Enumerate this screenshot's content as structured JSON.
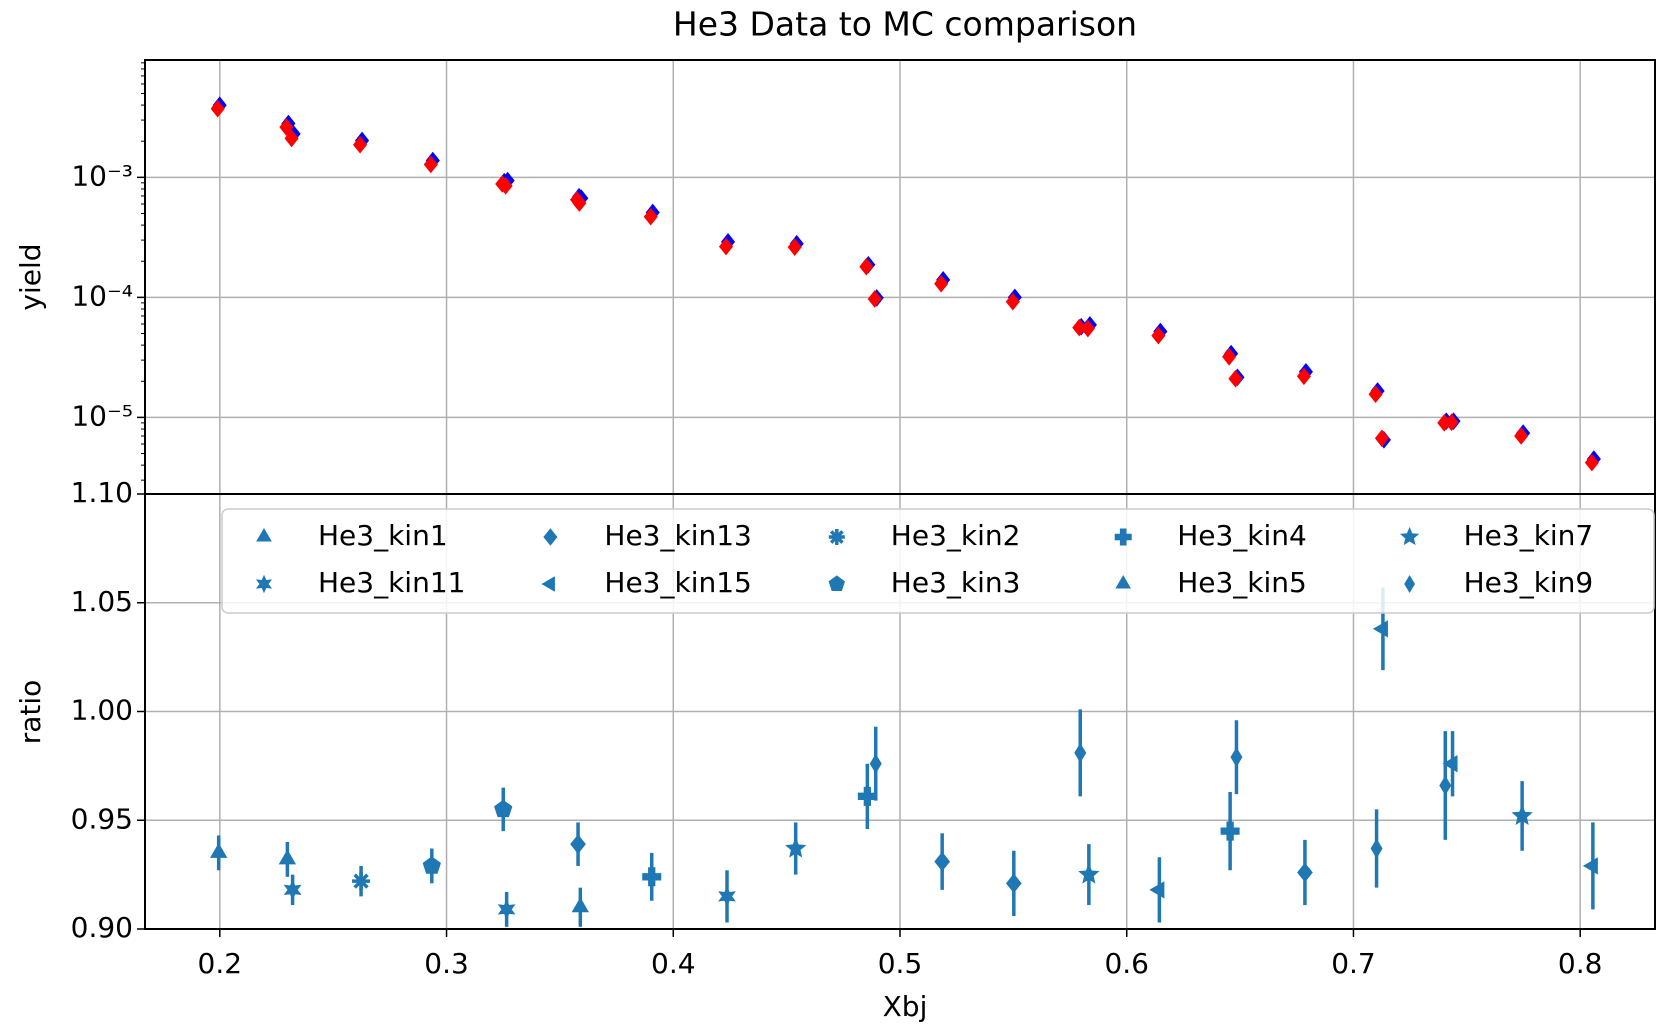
{
  "chart_data": [
    {
      "type": "scatter",
      "title": "He3 Data to MC comparison",
      "ylabel": "yield",
      "log_y": true,
      "grid": true,
      "xlim": [
        0.167,
        0.833
      ],
      "ylim": [
        2.3e-06,
        0.0095
      ],
      "yticks": [
        {
          "value": 0.001,
          "label": "10⁻³"
        },
        {
          "value": 0.0001,
          "label": "10⁻⁴"
        },
        {
          "value": 1e-05,
          "label": "10⁻⁵"
        }
      ],
      "x": [
        0.1995,
        0.2298,
        0.2321,
        0.2623,
        0.2935,
        0.325,
        0.3265,
        0.358,
        0.359,
        0.3905,
        0.4237,
        0.454,
        0.4856,
        0.4893,
        0.5186,
        0.5502,
        0.5795,
        0.5833,
        0.6144,
        0.6456,
        0.6484,
        0.6786,
        0.7102,
        0.713,
        0.7405,
        0.7437,
        0.7744,
        0.8056
      ],
      "series": [
        {
          "color": "#0000ff",
          "values": [
            0.00399,
            0.00281,
            0.0023,
            0.00203,
            0.00138,
            0.00092,
            0.00094,
            0.00069,
            0.00067,
            0.00051,
            0.00029,
            0.00028,
            0.000187,
            9.9e-05,
            0.00014,
            0.0001,
            5.7e-05,
            5.9e-05,
            5.2e-05,
            3.4e-05,
            2.16e-05,
            2.4e-05,
            1.66e-05,
            6.5e-06,
            9.3e-06,
            9.3e-06,
            7.4e-06,
            4.5e-06
          ]
        },
        {
          "color": "#ff0000",
          "values": [
            0.00373,
            0.00262,
            0.00211,
            0.00187,
            0.00128,
            0.00088,
            0.00085,
            0.00065,
            0.00061,
            0.00047,
            0.000265,
            0.000262,
            0.00018,
            9.7e-05,
            0.00013,
            9.2e-05,
            5.6e-05,
            5.5e-05,
            4.8e-05,
            3.2e-05,
            2.1e-05,
            2.2e-05,
            1.56e-05,
            6.7e-06,
            9e-06,
            9.1e-06,
            7e-06,
            4.2e-06
          ]
        }
      ]
    },
    {
      "type": "errorbar",
      "xlabel": "Xbj",
      "ylabel": "ratio",
      "grid": true,
      "legend_columns": 5,
      "legend_loc": "top",
      "xlim": [
        0.167,
        0.833
      ],
      "ylim": [
        0.9,
        1.1
      ],
      "xticks": [
        0.2,
        0.3,
        0.4,
        0.5,
        0.6,
        0.7,
        0.8
      ],
      "yticks": [
        {
          "value": 0.9,
          "label": "0.90"
        },
        0.95,
        {
          "value": 1.0,
          "label": "1.00"
        },
        1.05,
        {
          "value": 1.1,
          "label": "1.10"
        }
      ],
      "series": [
        {
          "name": "He3_kin1",
          "color": "#1f77b4",
          "marker": "triangle-up",
          "x": [
            0.1995,
            0.2298
          ],
          "values": [
            0.935,
            0.932
          ],
          "errors": [
            0.008,
            0.008
          ]
        },
        {
          "name": "He3_kin11",
          "color": "#1f77b4",
          "marker": "star6",
          "x": [
            0.2321,
            0.3265,
            0.4237
          ],
          "values": [
            0.918,
            0.909,
            0.915
          ],
          "errors": [
            0.007,
            0.008,
            0.012
          ]
        },
        {
          "name": "He3_kin13",
          "color": "#1f77b4",
          "marker": "diamond",
          "x": [
            0.358,
            0.5186,
            0.5502,
            0.6786
          ],
          "values": [
            0.939,
            0.931,
            0.921,
            0.926
          ],
          "errors": [
            0.01,
            0.013,
            0.015,
            0.015
          ]
        },
        {
          "name": "He3_kin15",
          "color": "#1f77b4",
          "marker": "triangle-left",
          "x": [
            0.6144,
            0.713,
            0.7437,
            0.8056
          ],
          "values": [
            0.918,
            1.038,
            0.976,
            0.929
          ],
          "errors": [
            0.015,
            0.019,
            0.015,
            0.02
          ]
        },
        {
          "name": "He3_kin2",
          "color": "#1f77b4",
          "marker": "asterisk",
          "x": [
            0.2623
          ],
          "values": [
            0.922
          ],
          "errors": [
            0.007
          ]
        },
        {
          "name": "He3_kin3",
          "color": "#1f77b4",
          "marker": "pentagon",
          "x": [
            0.2935,
            0.325
          ],
          "values": [
            0.929,
            0.955
          ],
          "errors": [
            0.008,
            0.01
          ]
        },
        {
          "name": "He3_kin4",
          "color": "#1f77b4",
          "marker": "plus",
          "x": [
            0.3905,
            0.4856,
            0.6456
          ],
          "values": [
            0.924,
            0.961,
            0.945
          ],
          "errors": [
            0.011,
            0.015,
            0.018
          ]
        },
        {
          "name": "He3_kin5",
          "color": "#1f77b4",
          "marker": "triangle-up",
          "x": [
            0.359
          ],
          "values": [
            0.91
          ],
          "errors": [
            0.009
          ]
        },
        {
          "name": "He3_kin7",
          "color": "#1f77b4",
          "marker": "star",
          "x": [
            0.454,
            0.5833,
            0.7744
          ],
          "values": [
            0.937,
            0.925,
            0.952
          ],
          "errors": [
            0.012,
            0.014,
            0.016
          ]
        },
        {
          "name": "He3_kin9",
          "color": "#1f77b4",
          "marker": "diamond-thin",
          "x": [
            0.4893,
            0.5795,
            0.6484,
            0.7102,
            0.7405
          ],
          "values": [
            0.976,
            0.981,
            0.979,
            0.937,
            0.966
          ],
          "errors": [
            0.017,
            0.02,
            0.017,
            0.018,
            0.025
          ]
        }
      ]
    }
  ]
}
